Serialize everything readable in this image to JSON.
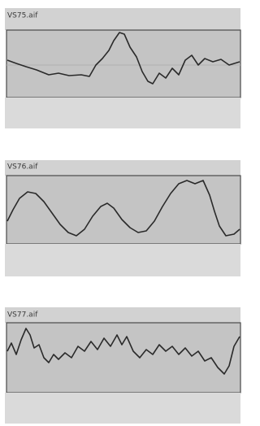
{
  "clips": [
    {
      "label": "VS75.aif"
    },
    {
      "label": "VS76.aif"
    },
    {
      "label": "VS77.aif"
    }
  ]
}
